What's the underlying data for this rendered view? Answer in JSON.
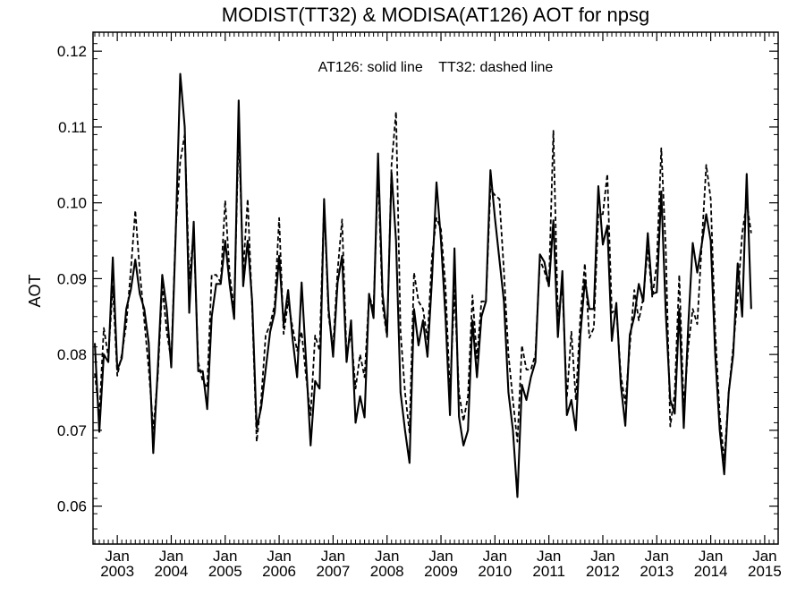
{
  "chart_data": {
    "type": "line",
    "title": "MODIST(TT32) & MODISA(AT126)  AOT for npsg",
    "subtitle": "AT126: solid line    TT32: dashed line",
    "ylabel": "AOT",
    "xlabel": "",
    "x_start": "2002-08",
    "x_end": "2015-03",
    "xlim": [
      2002.55,
      2015.25
    ],
    "ylim": [
      0.055,
      0.1225
    ],
    "y_ticks": [
      0.06,
      0.07,
      0.08,
      0.09,
      0.1,
      0.11,
      0.12
    ],
    "y_tick_labels": [
      "0.06",
      "0.07",
      "0.08",
      "0.09",
      "0.10",
      "0.11",
      "0.12"
    ],
    "y_minor_step": 0.002,
    "x_ticks": [
      {
        "month": "Jan",
        "year": "2003"
      },
      {
        "month": "Jan",
        "year": "2004"
      },
      {
        "month": "Jan",
        "year": "2005"
      },
      {
        "month": "Jan",
        "year": "2006"
      },
      {
        "month": "Jan",
        "year": "2007"
      },
      {
        "month": "Jan",
        "year": "2008"
      },
      {
        "month": "Jan",
        "year": "2009"
      },
      {
        "month": "Jan",
        "year": "2010"
      },
      {
        "month": "Jan",
        "year": "2011"
      },
      {
        "month": "Jan",
        "year": "2012"
      },
      {
        "month": "Jan",
        "year": "2013"
      },
      {
        "month": "Jan",
        "year": "2014"
      },
      {
        "month": "Jan",
        "year": "2015"
      }
    ],
    "grid": false,
    "legend": "top-center text",
    "series": [
      {
        "name": "AT126",
        "style": "solid",
        "color": "#000000",
        "values": [
          0.0815,
          0.0698,
          0.08,
          0.079,
          0.0928,
          0.078,
          0.0795,
          0.086,
          0.0885,
          0.0925,
          0.088,
          0.086,
          0.0815,
          0.067,
          0.078,
          0.0905,
          0.086,
          0.0783,
          0.096,
          0.117,
          0.11,
          0.0855,
          0.0975,
          0.0778,
          0.0778,
          0.0728,
          0.085,
          0.0893,
          0.0893,
          0.095,
          0.0892,
          0.0847,
          0.1135,
          0.089,
          0.095,
          0.087,
          0.0703,
          0.073,
          0.078,
          0.083,
          0.0855,
          0.093,
          0.084,
          0.0885,
          0.082,
          0.077,
          0.0895,
          0.079,
          0.068,
          0.0765,
          0.0755,
          0.1005,
          0.086,
          0.0797,
          0.0895,
          0.093,
          0.079,
          0.0845,
          0.071,
          0.0745,
          0.0717,
          0.088,
          0.0848,
          0.1065,
          0.088,
          0.0826,
          0.104,
          0.095,
          0.075,
          0.07,
          0.0657,
          0.086,
          0.0812,
          0.0845,
          0.0797,
          0.09,
          0.1027,
          0.095,
          0.085,
          0.072,
          0.094,
          0.0718,
          0.068,
          0.07,
          0.0845,
          0.077,
          0.085,
          0.087,
          0.1043,
          0.098,
          0.0925,
          0.087,
          0.075,
          0.07,
          0.0612,
          0.076,
          0.074,
          0.077,
          0.079,
          0.0932,
          0.0922,
          0.089,
          0.0977,
          0.0823,
          0.091,
          0.072,
          0.074,
          0.07,
          0.0825,
          0.0898,
          0.086,
          0.086,
          0.1022,
          0.0945,
          0.097,
          0.0818,
          0.0868,
          0.076,
          0.0706,
          0.0826,
          0.085,
          0.0893,
          0.087,
          0.096,
          0.088,
          0.0882,
          0.1015,
          0.0855,
          0.074,
          0.0722,
          0.086,
          0.0703,
          0.0838,
          0.0947,
          0.0908,
          0.0945,
          0.0985,
          0.095,
          0.08,
          0.07,
          0.0642,
          0.075,
          0.08,
          0.092,
          0.085,
          0.1038,
          0.086
        ]
      },
      {
        "name": "TT32",
        "style": "dashed",
        "color": "#000000",
        "values": [
          0.0775,
          0.072,
          0.0835,
          0.0797,
          0.089,
          0.0772,
          0.08,
          0.084,
          0.091,
          0.099,
          0.091,
          0.0845,
          0.078,
          0.0702,
          0.077,
          0.089,
          0.083,
          0.0792,
          0.0965,
          0.1055,
          0.109,
          0.09,
          0.096,
          0.079,
          0.0765,
          0.0756,
          0.0905,
          0.0905,
          0.0895,
          0.1003,
          0.0905,
          0.086,
          0.1095,
          0.091,
          0.1005,
          0.086,
          0.0685,
          0.074,
          0.0825,
          0.084,
          0.0865,
          0.098,
          0.0827,
          0.087,
          0.0835,
          0.0805,
          0.083,
          0.077,
          0.072,
          0.0825,
          0.0805,
          0.1,
          0.085,
          0.081,
          0.091,
          0.0978,
          0.08,
          0.0828,
          0.0755,
          0.08,
          0.077,
          0.0878,
          0.086,
          0.1042,
          0.0865,
          0.0823,
          0.105,
          0.112,
          0.083,
          0.075,
          0.0697,
          0.0908,
          0.087,
          0.086,
          0.082,
          0.093,
          0.098,
          0.0965,
          0.089,
          0.075,
          0.0885,
          0.075,
          0.0712,
          0.0745,
          0.0878,
          0.0795,
          0.087,
          0.087,
          0.1018,
          0.101,
          0.1005,
          0.091,
          0.08,
          0.074,
          0.0685,
          0.0812,
          0.078,
          0.078,
          0.08,
          0.0925,
          0.091,
          0.089,
          0.1095,
          0.085,
          0.089,
          0.0743,
          0.083,
          0.074,
          0.085,
          0.092,
          0.0822,
          0.0835,
          0.0985,
          0.0985,
          0.1038,
          0.0855,
          0.086,
          0.0773,
          0.0735,
          0.081,
          0.0885,
          0.0845,
          0.0875,
          0.094,
          0.0875,
          0.092,
          0.1072,
          0.094,
          0.0705,
          0.075,
          0.0905,
          0.073,
          0.081,
          0.086,
          0.084,
          0.0945,
          0.105,
          0.1005,
          0.083,
          0.072,
          0.066,
          0.075,
          0.081,
          0.0875,
          0.096,
          0.1,
          0.096
        ]
      }
    ]
  }
}
